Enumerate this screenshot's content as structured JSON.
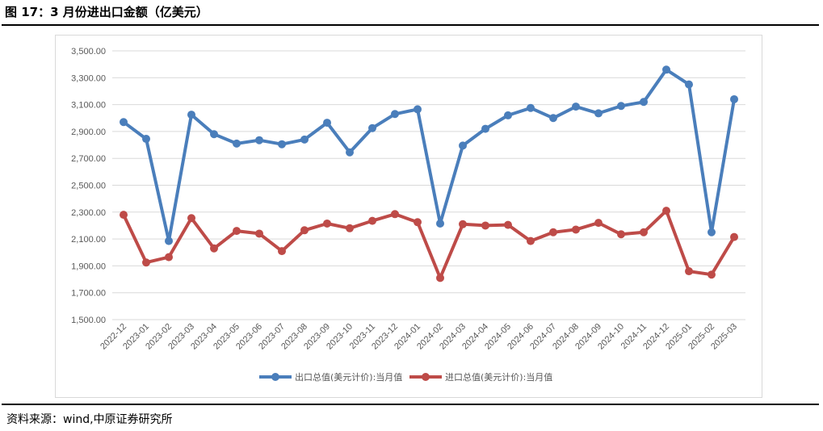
{
  "figure": {
    "title": "图 17：3 月份进出口金额（亿美元）",
    "source": "资料来源：wind,中原证券研究所"
  },
  "chart_data": {
    "type": "line",
    "categories": [
      "2022-12",
      "2023-01",
      "2023-02",
      "2023-03",
      "2023-04",
      "2023-05",
      "2023-06",
      "2023-07",
      "2023-08",
      "2023-09",
      "2023-10",
      "2023-11",
      "2023-12",
      "2024-01",
      "2024-02",
      "2024-03",
      "2024-04",
      "2024-05",
      "2024-06",
      "2024-07",
      "2024-08",
      "2024-09",
      "2024-10",
      "2024-11",
      "2024-12",
      "2025-01",
      "2025-02",
      "2025-03"
    ],
    "series": [
      {
        "name": "出口总值(美元计价):当月值",
        "color": "#4a7ebb",
        "values": [
          2970,
          2845,
          2085,
          3025,
          2880,
          2810,
          2835,
          2805,
          2840,
          2965,
          2745,
          2925,
          3030,
          3065,
          2215,
          2795,
          2920,
          3020,
          3075,
          3000,
          3085,
          3035,
          3090,
          3120,
          3360,
          3250,
          2150,
          3140
        ]
      },
      {
        "name": "进口总值(美元计价):当月值",
        "color": "#be4b48",
        "values": [
          2280,
          1925,
          1965,
          2255,
          2030,
          2160,
          2140,
          2010,
          2165,
          2215,
          2180,
          2235,
          2285,
          2225,
          1810,
          2210,
          2200,
          2205,
          2085,
          2150,
          2170,
          2220,
          2135,
          2150,
          2310,
          1860,
          1835,
          2115
        ]
      }
    ],
    "y_ticks": [
      "1,500.00",
      "1,700.00",
      "1,900.00",
      "2,100.00",
      "2,300.00",
      "2,500.00",
      "2,700.00",
      "2,900.00",
      "3,100.00",
      "3,300.00",
      "3,500.00"
    ],
    "ylim": [
      1500,
      3500
    ],
    "grid": true,
    "legend_position": "bottom-center"
  }
}
